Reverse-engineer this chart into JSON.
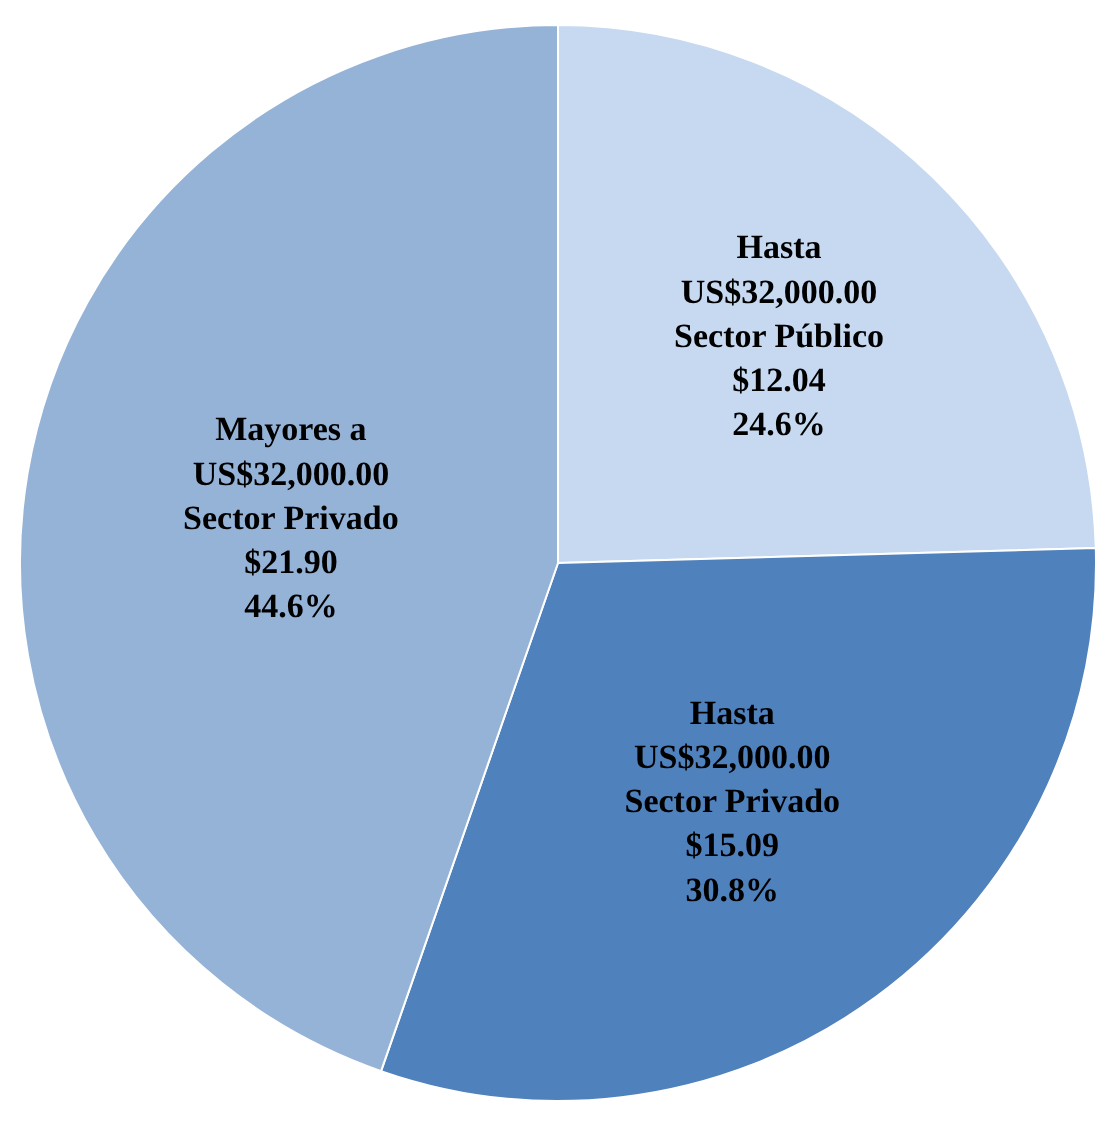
{
  "chart_data": {
    "type": "pie",
    "categories": [
      "Hasta US$32,000.00 Sector Público",
      "Hasta US$32,000.00 Sector Privado",
      "Mayores a US$32,000.00 Sector Privado"
    ],
    "values": [
      12.04,
      15.09,
      21.9
    ],
    "value_labels": [
      "$12.04\n24.6%",
      "$15.09\n30.8%",
      "$21.90\n44.6%"
    ],
    "colors": [
      "#c6d9f1",
      "#4f81bd",
      "#95b3d7"
    ],
    "legend": false
  }
}
